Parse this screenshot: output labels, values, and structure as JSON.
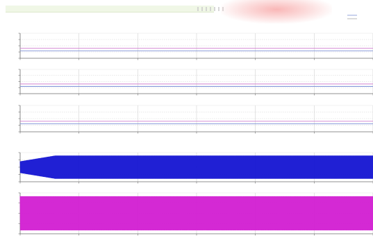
{
  "chart_data": [
    {
      "type": "line",
      "series": [
        {
          "x": [
            0,
            6
          ],
          "values": [
            20,
            20
          ],
          "color": "#d080d0"
        },
        {
          "x": [
            0,
            6
          ],
          "values": [
            15,
            15
          ],
          "color": "#7a8fd6"
        }
      ],
      "xlim": [
        0,
        6
      ],
      "ylim": [
        0,
        50
      ],
      "grid": true
    },
    {
      "type": "line",
      "series": [
        {
          "x": [
            0,
            6
          ],
          "values": [
            20,
            20
          ],
          "color": "#d080d0"
        },
        {
          "x": [
            0,
            6
          ],
          "values": [
            15,
            15
          ],
          "color": "#7a8fd6"
        }
      ],
      "xlim": [
        0,
        6
      ],
      "ylim": [
        0,
        50
      ],
      "grid": true
    },
    {
      "type": "line",
      "series": [
        {
          "x": [
            0,
            6
          ],
          "values": [
            20,
            20
          ],
          "color": "#d080d0"
        },
        {
          "x": [
            0,
            6
          ],
          "values": [
            15,
            15
          ],
          "color": "#7a8fd6"
        }
      ],
      "xlim": [
        0,
        6
      ],
      "ylim": [
        0,
        50
      ],
      "grid": true
    },
    {
      "type": "line",
      "series": [
        {
          "x": [
            0,
            6
          ],
          "values": [
            -8,
            8
          ],
          "band": true,
          "amplitude_start": 4,
          "amplitude_end": 8,
          "color": "#1414d2"
        }
      ],
      "xlim": [
        0,
        6
      ],
      "ylim": [
        -10,
        10
      ],
      "grid": true
    },
    {
      "type": "line",
      "series": [
        {
          "x": [
            0,
            6
          ],
          "values": [
            -500,
            500
          ],
          "band": true,
          "amplitude_start": 500,
          "amplitude_end": 500,
          "color": "#d21ed2"
        }
      ],
      "xlim": [
        0,
        6
      ],
      "ylim": [
        -600,
        600
      ],
      "grid": true
    }
  ],
  "legend": {
    "position": "top-right",
    "entries": [
      {
        "name": "",
        "color": "#7a8fd6"
      },
      {
        "name": "",
        "color": "#a6a6a6"
      }
    ]
  },
  "colors": {
    "panel_background": "#ffffff",
    "grid": "#d2d2d2",
    "axis": "#6f6f6f"
  }
}
